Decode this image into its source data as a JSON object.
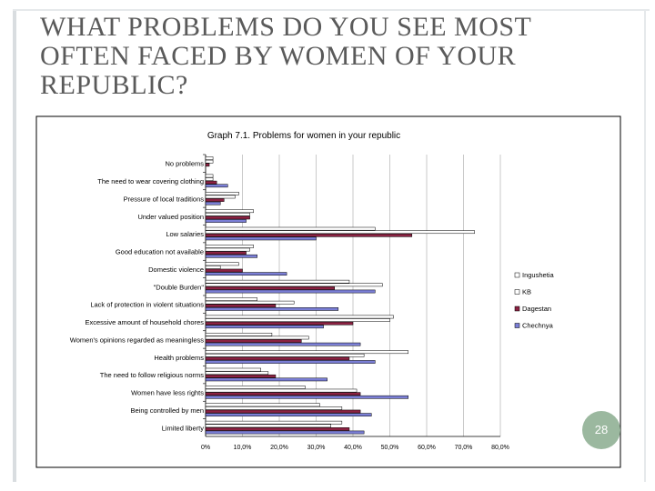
{
  "slide": {
    "title": "WHAT PROBLEMS DO YOU SEE MOST OFTEN FACED BY WOMEN OF YOUR REPUBLIC?",
    "page_number": "28"
  },
  "chart_data": {
    "type": "bar",
    "orientation": "horizontal",
    "title": "Graph 7.1. Problems for women in your republic",
    "xlabel": "",
    "ylabel": "",
    "xlim": [
      0,
      80
    ],
    "x_ticks": [
      "0%",
      "10,0%",
      "20,0%",
      "30,0%",
      "40,0%",
      "50,0%",
      "60,0%",
      "70,0%",
      "80,0%"
    ],
    "grid": "vertical",
    "legend_position": "right",
    "categories": [
      "No problems",
      "The need to wear covering clothing",
      "Pressure of local traditions",
      "Under valued position",
      "Low salaries",
      "Good education  not available",
      "Domestic violence",
      "\"Double Burden\"",
      "Lack of protection in violent situations",
      "Excessive amount of household chores",
      "Women's opinions regarded  as meaningless",
      "Health problems",
      "The need to follow religious norms",
      "Women have less rights",
      "Being controlled by men",
      "Limited liberty"
    ],
    "series": [
      {
        "name": "Ingushetia",
        "color": "#ffffff",
        "values": [
          2,
          2,
          9,
          13,
          46,
          13,
          9,
          39,
          14,
          51,
          18,
          55,
          15,
          27,
          31,
          37
        ]
      },
      {
        "name": "KB",
        "color": "#ffffff",
        "values": [
          2,
          2,
          8,
          12,
          73,
          12,
          4,
          48,
          24,
          50,
          28,
          43,
          17,
          41,
          37,
          34
        ]
      },
      {
        "name": "Dagestan",
        "color": "#8b2242",
        "values": [
          1,
          3,
          5,
          12,
          56,
          11,
          10,
          35,
          19,
          40,
          26,
          39,
          19,
          42,
          42,
          39
        ]
      },
      {
        "name": "Chechnya",
        "color": "#7b7fd6",
        "values": [
          0,
          6,
          4,
          11,
          30,
          14,
          22,
          46,
          36,
          32,
          42,
          46,
          33,
          55,
          45,
          43
        ]
      }
    ]
  }
}
